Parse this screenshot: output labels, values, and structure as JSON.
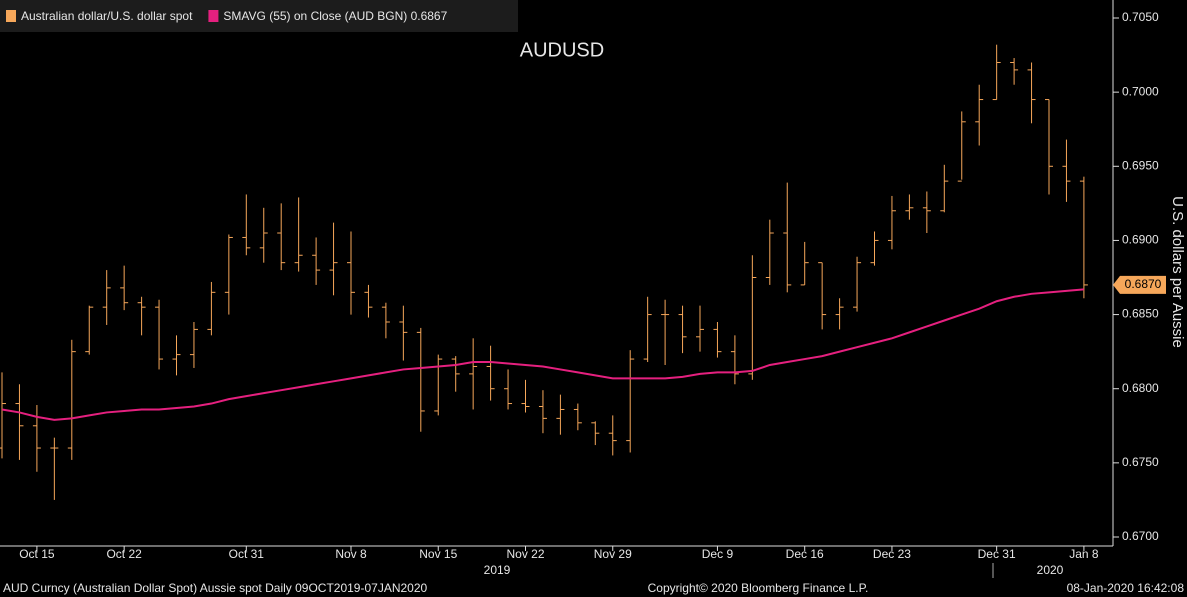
{
  "chart_data": {
    "type": "ohlc",
    "title": "AUDUSD",
    "y_axis_label": "U.S. dollars per Aussie",
    "categories": [
      null,
      null,
      "Oct 15",
      null,
      null,
      null,
      null,
      "Oct 22",
      null,
      null,
      null,
      null,
      null,
      null,
      "Oct 31",
      null,
      null,
      null,
      null,
      null,
      "Nov 8",
      null,
      null,
      null,
      null,
      "Nov 15",
      null,
      null,
      null,
      null,
      "Nov 22",
      null,
      null,
      null,
      null,
      "Nov 29",
      null,
      null,
      null,
      null,
      null,
      "Dec 9",
      null,
      null,
      null,
      null,
      "Dec 16",
      null,
      null,
      null,
      null,
      "Dec 23",
      null,
      null,
      null,
      null,
      null,
      "Dec 31",
      null,
      null,
      null,
      null,
      "Jan 8"
    ],
    "x_group_labels": [
      "2019",
      "2020"
    ],
    "series": [
      {
        "name": "Australian dollar/U.S. dollar spot",
        "color": "#f6a75a",
        "open": [
          0.676,
          0.679,
          0.6775,
          0.676,
          0.676,
          0.6825,
          0.6855,
          0.6868,
          0.6858,
          0.6855,
          0.682,
          0.6823,
          0.684,
          0.6865,
          0.6902,
          0.6895,
          0.6905,
          0.6885,
          0.689,
          0.688,
          0.6885,
          0.6865,
          0.6855,
          0.6845,
          0.6838,
          0.6785,
          0.682,
          0.681,
          0.6815,
          0.68,
          0.679,
          0.6788,
          0.678,
          0.6786,
          0.6777,
          0.677,
          0.6765,
          0.682,
          0.685,
          0.685,
          0.6835,
          0.684,
          0.6825,
          0.681,
          0.6875,
          0.6905,
          0.687,
          0.6885,
          0.685,
          0.6855,
          0.6885,
          0.69,
          0.692,
          0.6922,
          0.692,
          0.694,
          0.698,
          0.6995,
          0.702,
          0.7015,
          0.6995,
          0.695,
          0.694
        ],
        "high": [
          0.6811,
          0.6803,
          0.6789,
          0.6767,
          0.6833,
          0.6856,
          0.688,
          0.6883,
          0.6862,
          0.686,
          0.6836,
          0.6845,
          0.6872,
          0.6904,
          0.6931,
          0.6922,
          0.6925,
          0.6929,
          0.6902,
          0.6912,
          0.6906,
          0.687,
          0.6858,
          0.6856,
          0.6841,
          0.6823,
          0.6822,
          0.6834,
          0.6829,
          0.6813,
          0.6806,
          0.6799,
          0.6796,
          0.679,
          0.6778,
          0.6782,
          0.6826,
          0.6862,
          0.686,
          0.6856,
          0.6856,
          0.6845,
          0.6836,
          0.689,
          0.6914,
          0.6939,
          0.6899,
          0.6885,
          0.6861,
          0.6889,
          0.6906,
          0.693,
          0.6931,
          0.6933,
          0.6951,
          0.6987,
          0.7005,
          0.7032,
          0.7023,
          0.702,
          0.6995,
          0.6968,
          0.6943
        ],
        "low": [
          0.6753,
          0.6752,
          0.6744,
          0.6725,
          0.6752,
          0.6823,
          0.6843,
          0.6853,
          0.6836,
          0.6813,
          0.6809,
          0.6814,
          0.6836,
          0.685,
          0.689,
          0.6885,
          0.688,
          0.6879,
          0.687,
          0.6863,
          0.685,
          0.6848,
          0.6834,
          0.6819,
          0.6771,
          0.6782,
          0.6798,
          0.6786,
          0.6792,
          0.6786,
          0.6784,
          0.677,
          0.6769,
          0.6772,
          0.6762,
          0.6755,
          0.6757,
          0.6818,
          0.6816,
          0.6824,
          0.6825,
          0.6821,
          0.6803,
          0.6806,
          0.687,
          0.6865,
          0.687,
          0.684,
          0.684,
          0.6852,
          0.6883,
          0.6894,
          0.6914,
          0.6905,
          0.6919,
          0.6941,
          0.6964,
          0.6995,
          0.7005,
          0.6979,
          0.6931,
          0.6926,
          0.6861
        ],
        "close": [
          0.679,
          0.6775,
          0.676,
          0.676,
          0.6825,
          0.6855,
          0.6868,
          0.6858,
          0.6855,
          0.682,
          0.6823,
          0.684,
          0.6865,
          0.6902,
          0.6895,
          0.6905,
          0.6885,
          0.689,
          0.688,
          0.6885,
          0.6865,
          0.6855,
          0.6845,
          0.6838,
          0.6785,
          0.682,
          0.681,
          0.6815,
          0.68,
          0.679,
          0.6788,
          0.678,
          0.6786,
          0.6777,
          0.677,
          0.6765,
          0.682,
          0.685,
          0.685,
          0.6835,
          0.684,
          0.6825,
          0.681,
          0.6875,
          0.6905,
          0.687,
          0.6885,
          0.685,
          0.6855,
          0.6885,
          0.69,
          0.692,
          0.6922,
          0.692,
          0.694,
          0.698,
          0.6995,
          0.702,
          0.7015,
          0.6995,
          0.695,
          0.694,
          0.687
        ]
      },
      {
        "name": "SMAVG (55)  on Close (AUD BGN) 0.6867",
        "color": "#e5207f",
        "type": "line",
        "values": [
          0.6786,
          0.6784,
          0.6781,
          0.6779,
          0.678,
          0.6782,
          0.6784,
          0.6785,
          0.6786,
          0.6786,
          0.6787,
          0.6788,
          0.679,
          0.6793,
          0.6795,
          0.6797,
          0.6799,
          0.6801,
          0.6803,
          0.6805,
          0.6807,
          0.6809,
          0.6811,
          0.6813,
          0.6814,
          0.6815,
          0.6816,
          0.6818,
          0.6818,
          0.6817,
          0.6816,
          0.6815,
          0.6813,
          0.6811,
          0.6809,
          0.6807,
          0.6807,
          0.6807,
          0.6807,
          0.6808,
          0.681,
          0.6811,
          0.6811,
          0.6812,
          0.6816,
          0.6818,
          0.682,
          0.6822,
          0.6825,
          0.6828,
          0.6831,
          0.6834,
          0.6838,
          0.6842,
          0.6846,
          0.685,
          0.6854,
          0.6859,
          0.6862,
          0.6864,
          0.6865,
          0.6866,
          0.6867
        ]
      }
    ],
    "last_value_label": {
      "value": 0.687,
      "label": "0.6870"
    },
    "ylim": [
      0.67,
      0.705
    ],
    "yticks": [
      {
        "value": 0.67,
        "label": "0.6700"
      },
      {
        "value": 0.675,
        "label": "0.6750"
      },
      {
        "value": 0.68,
        "label": "0.6800"
      },
      {
        "value": 0.685,
        "label": "0.6850"
      },
      {
        "value": 0.69,
        "label": "0.6900"
      },
      {
        "value": 0.695,
        "label": "0.6950"
      },
      {
        "value": 0.7,
        "label": "0.7000"
      },
      {
        "value": 0.705,
        "label": "0.7050"
      }
    ],
    "grid": false,
    "footer": {
      "left": "AUD Curncy (Australian Dollar Spot) Aussie spot  Daily 09OCT2019-07JAN2020",
      "center": "Copyright© 2020 Bloomberg Finance L.P.",
      "right": "08-Jan-2020 16:42:08"
    }
  }
}
